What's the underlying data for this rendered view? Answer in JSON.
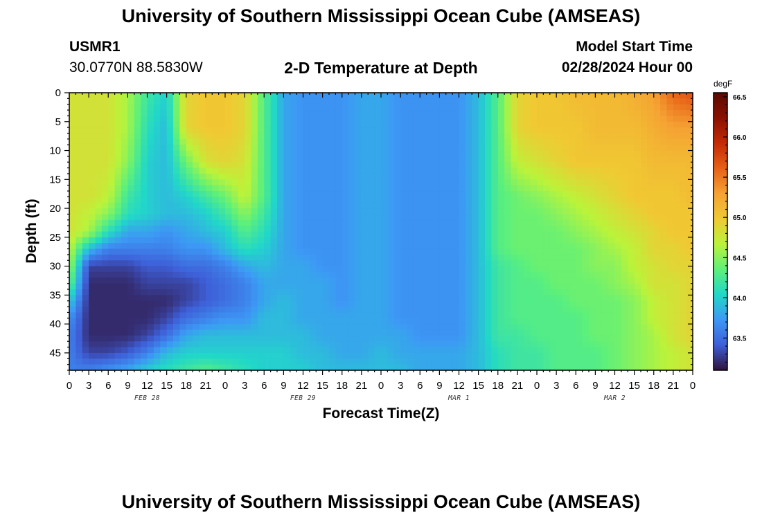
{
  "header": {
    "title": "University of Southern Mississippi Ocean Cube (AMSEAS)",
    "station_id": "USMR1",
    "station_coords": "30.0770N  88.5830W",
    "plot_title": "2-D Temperature at Depth",
    "model_start_label": "Model Start Time",
    "model_start_value": "02/28/2024 Hour 00"
  },
  "footer": {
    "title": "University of Southern Mississippi Ocean Cube (AMSEAS)"
  },
  "chart_data": {
    "type": "heatmap",
    "title": "2-D Temperature at Depth",
    "xlabel": "Forecast Time(Z)",
    "ylabel": "Depth (ft)",
    "x_tick_labels": [
      "0",
      "3",
      "6",
      "9",
      "12",
      "15",
      "18",
      "21",
      "0",
      "3",
      "6",
      "9",
      "12",
      "15",
      "18",
      "21",
      "0",
      "3",
      "6",
      "9",
      "12",
      "15",
      "18",
      "21",
      "0",
      "3",
      "6",
      "9",
      "12",
      "15",
      "18",
      "21",
      "0"
    ],
    "date_labels": [
      {
        "label": "FEB 28",
        "hour": 12
      },
      {
        "label": "FEB 29",
        "hour": 36
      },
      {
        "label": "MAR 1",
        "hour": 60
      },
      {
        "label": "MAR 2",
        "hour": 84
      }
    ],
    "xlim_hours": [
      0,
      96
    ],
    "y_tick_labels": [
      "0",
      "5",
      "10",
      "15",
      "20",
      "25",
      "30",
      "35",
      "40",
      "45"
    ],
    "y_ticks": [
      0,
      5,
      10,
      15,
      20,
      25,
      30,
      35,
      40,
      45
    ],
    "ylim_ft": [
      0,
      48
    ],
    "colorbar": {
      "unit": "degF",
      "min": 63.1,
      "max": 66.55,
      "tick_labels": [
        "66.5",
        "66.0",
        "65.5",
        "65.0",
        "64.5",
        "64.0",
        "63.5"
      ],
      "ticks": [
        66.5,
        66.0,
        65.5,
        65.0,
        64.5,
        64.0,
        63.5
      ],
      "colors": [
        "#30123b",
        "#3e5fd8",
        "#3d98f5",
        "#21d8c8",
        "#5ef07a",
        "#bbf33a",
        "#f0c933",
        "#f5a233",
        "#e76117",
        "#c42a05",
        "#8a1102",
        "#5a0a02"
      ]
    },
    "field_description_hours": [
      0,
      3,
      6,
      9,
      12,
      15,
      18,
      21,
      24,
      27,
      30,
      33,
      36,
      39,
      42,
      45,
      48,
      51,
      54,
      57,
      60,
      63,
      66,
      69,
      72,
      75,
      78,
      81,
      84,
      87,
      90,
      93,
      96
    ],
    "field_description_depths_ft": [
      0,
      6,
      12,
      18,
      21,
      24,
      27,
      30,
      33,
      36,
      39,
      42,
      45,
      48
    ],
    "temperature_degF": [
      [
        64.8,
        64.8,
        64.8,
        64.8,
        64.8,
        64.8,
        64.7,
        64.6,
        64.4,
        64.0,
        63.7,
        63.6,
        63.6,
        63.6
      ],
      [
        64.8,
        64.8,
        64.8,
        64.8,
        64.7,
        64.6,
        63.9,
        63.3,
        63.2,
        63.2,
        63.2,
        63.2,
        63.3,
        63.6
      ],
      [
        64.8,
        64.8,
        64.8,
        64.7,
        64.5,
        64.1,
        63.6,
        63.3,
        63.2,
        63.2,
        63.2,
        63.2,
        63.3,
        63.7
      ],
      [
        64.6,
        64.6,
        64.5,
        64.2,
        64.1,
        63.8,
        63.6,
        63.3,
        63.2,
        63.2,
        63.2,
        63.2,
        63.4,
        63.8
      ],
      [
        64.2,
        64.1,
        64.0,
        64.0,
        64.0,
        63.8,
        63.6,
        63.4,
        63.3,
        63.2,
        63.2,
        63.3,
        63.6,
        64.0
      ],
      [
        64.0,
        63.9,
        63.9,
        63.9,
        63.9,
        63.7,
        63.6,
        63.4,
        63.3,
        63.2,
        63.3,
        63.5,
        63.9,
        64.1
      ],
      [
        64.9,
        64.9,
        64.4,
        64.0,
        63.9,
        63.8,
        63.7,
        63.5,
        63.3,
        63.3,
        63.5,
        63.8,
        64.0,
        64.2
      ],
      [
        65.0,
        65.0,
        64.8,
        64.2,
        64.0,
        63.9,
        63.7,
        63.5,
        63.4,
        63.4,
        63.6,
        63.9,
        64.0,
        64.3
      ],
      [
        65.0,
        65.0,
        64.9,
        64.4,
        64.2,
        64.0,
        63.9,
        63.6,
        63.5,
        63.5,
        63.7,
        63.9,
        64.0,
        64.2
      ],
      [
        64.9,
        64.9,
        64.8,
        64.7,
        64.5,
        64.3,
        64.1,
        63.8,
        63.6,
        63.6,
        63.7,
        63.9,
        64.0,
        64.1
      ],
      [
        64.3,
        64.3,
        64.3,
        64.3,
        64.2,
        64.1,
        64.0,
        63.9,
        63.8,
        63.8,
        63.9,
        63.9,
        64.0,
        64.0
      ],
      [
        63.8,
        63.8,
        63.8,
        63.8,
        63.8,
        63.8,
        63.8,
        63.8,
        63.8,
        63.9,
        63.9,
        63.9,
        64.0,
        64.0
      ],
      [
        63.7,
        63.7,
        63.7,
        63.7,
        63.7,
        63.7,
        63.7,
        63.8,
        63.8,
        63.8,
        63.8,
        63.9,
        63.9,
        64.0
      ],
      [
        63.7,
        63.7,
        63.7,
        63.7,
        63.7,
        63.7,
        63.7,
        63.7,
        63.8,
        63.8,
        63.8,
        63.8,
        63.9,
        63.9
      ],
      [
        63.7,
        63.7,
        63.7,
        63.7,
        63.7,
        63.7,
        63.7,
        63.7,
        63.7,
        63.7,
        63.8,
        63.8,
        63.8,
        63.9
      ],
      [
        63.8,
        63.8,
        63.8,
        63.8,
        63.8,
        63.8,
        63.8,
        63.8,
        63.8,
        63.8,
        63.8,
        63.8,
        63.8,
        63.9
      ],
      [
        63.8,
        63.8,
        63.8,
        63.8,
        63.8,
        63.8,
        63.8,
        63.8,
        63.8,
        63.8,
        63.8,
        63.8,
        63.9,
        63.9
      ],
      [
        63.7,
        63.7,
        63.7,
        63.7,
        63.7,
        63.7,
        63.7,
        63.7,
        63.7,
        63.7,
        63.7,
        63.8,
        63.8,
        63.9
      ],
      [
        63.7,
        63.7,
        63.7,
        63.7,
        63.7,
        63.7,
        63.7,
        63.7,
        63.7,
        63.7,
        63.7,
        63.7,
        63.8,
        63.8
      ],
      [
        63.7,
        63.7,
        63.7,
        63.7,
        63.7,
        63.7,
        63.7,
        63.7,
        63.7,
        63.7,
        63.7,
        63.7,
        63.8,
        63.8
      ],
      [
        63.7,
        63.7,
        63.7,
        63.7,
        63.7,
        63.7,
        63.7,
        63.7,
        63.7,
        63.7,
        63.7,
        63.7,
        63.8,
        63.8
      ],
      [
        63.9,
        63.9,
        63.9,
        63.9,
        63.9,
        63.9,
        63.9,
        63.9,
        63.9,
        63.9,
        63.9,
        63.9,
        63.9,
        63.9
      ],
      [
        64.3,
        64.3,
        64.3,
        64.3,
        64.3,
        64.3,
        64.3,
        64.2,
        64.2,
        64.2,
        64.2,
        64.2,
        64.1,
        64.1
      ],
      [
        64.9,
        64.9,
        64.7,
        64.4,
        64.4,
        64.4,
        64.4,
        64.3,
        64.3,
        64.3,
        64.3,
        64.2,
        64.2,
        64.2
      ],
      [
        65.0,
        65.0,
        64.8,
        64.5,
        64.4,
        64.4,
        64.4,
        64.4,
        64.3,
        64.3,
        64.3,
        64.3,
        64.2,
        64.2
      ],
      [
        65.0,
        65.0,
        64.9,
        64.6,
        64.5,
        64.4,
        64.4,
        64.4,
        64.4,
        64.3,
        64.3,
        64.3,
        64.3,
        64.3
      ],
      [
        65.1,
        65.0,
        65.0,
        64.7,
        64.6,
        64.5,
        64.4,
        64.4,
        64.4,
        64.4,
        64.3,
        64.3,
        64.3,
        64.3
      ],
      [
        65.1,
        65.1,
        65.0,
        64.8,
        64.7,
        64.6,
        64.5,
        64.5,
        64.4,
        64.4,
        64.4,
        64.4,
        64.3,
        64.3
      ],
      [
        65.1,
        65.1,
        65.0,
        64.9,
        64.8,
        64.7,
        64.6,
        64.5,
        64.5,
        64.4,
        64.4,
        64.4,
        64.4,
        64.4
      ],
      [
        65.2,
        65.1,
        65.0,
        65.0,
        64.9,
        64.8,
        64.7,
        64.7,
        64.6,
        64.5,
        64.5,
        64.5,
        64.5,
        64.5
      ],
      [
        65.3,
        65.2,
        65.1,
        65.0,
        65.0,
        64.9,
        64.9,
        64.8,
        64.8,
        64.7,
        64.7,
        64.6,
        64.6,
        64.6
      ],
      [
        65.6,
        65.3,
        65.1,
        65.0,
        65.0,
        65.0,
        64.9,
        64.9,
        64.8,
        64.8,
        64.8,
        64.8,
        64.7,
        64.7
      ],
      [
        65.7,
        65.3,
        65.1,
        65.1,
        65.0,
        65.0,
        65.0,
        64.9,
        64.9,
        64.9,
        64.9,
        64.9,
        64.8,
        64.8
      ]
    ]
  }
}
